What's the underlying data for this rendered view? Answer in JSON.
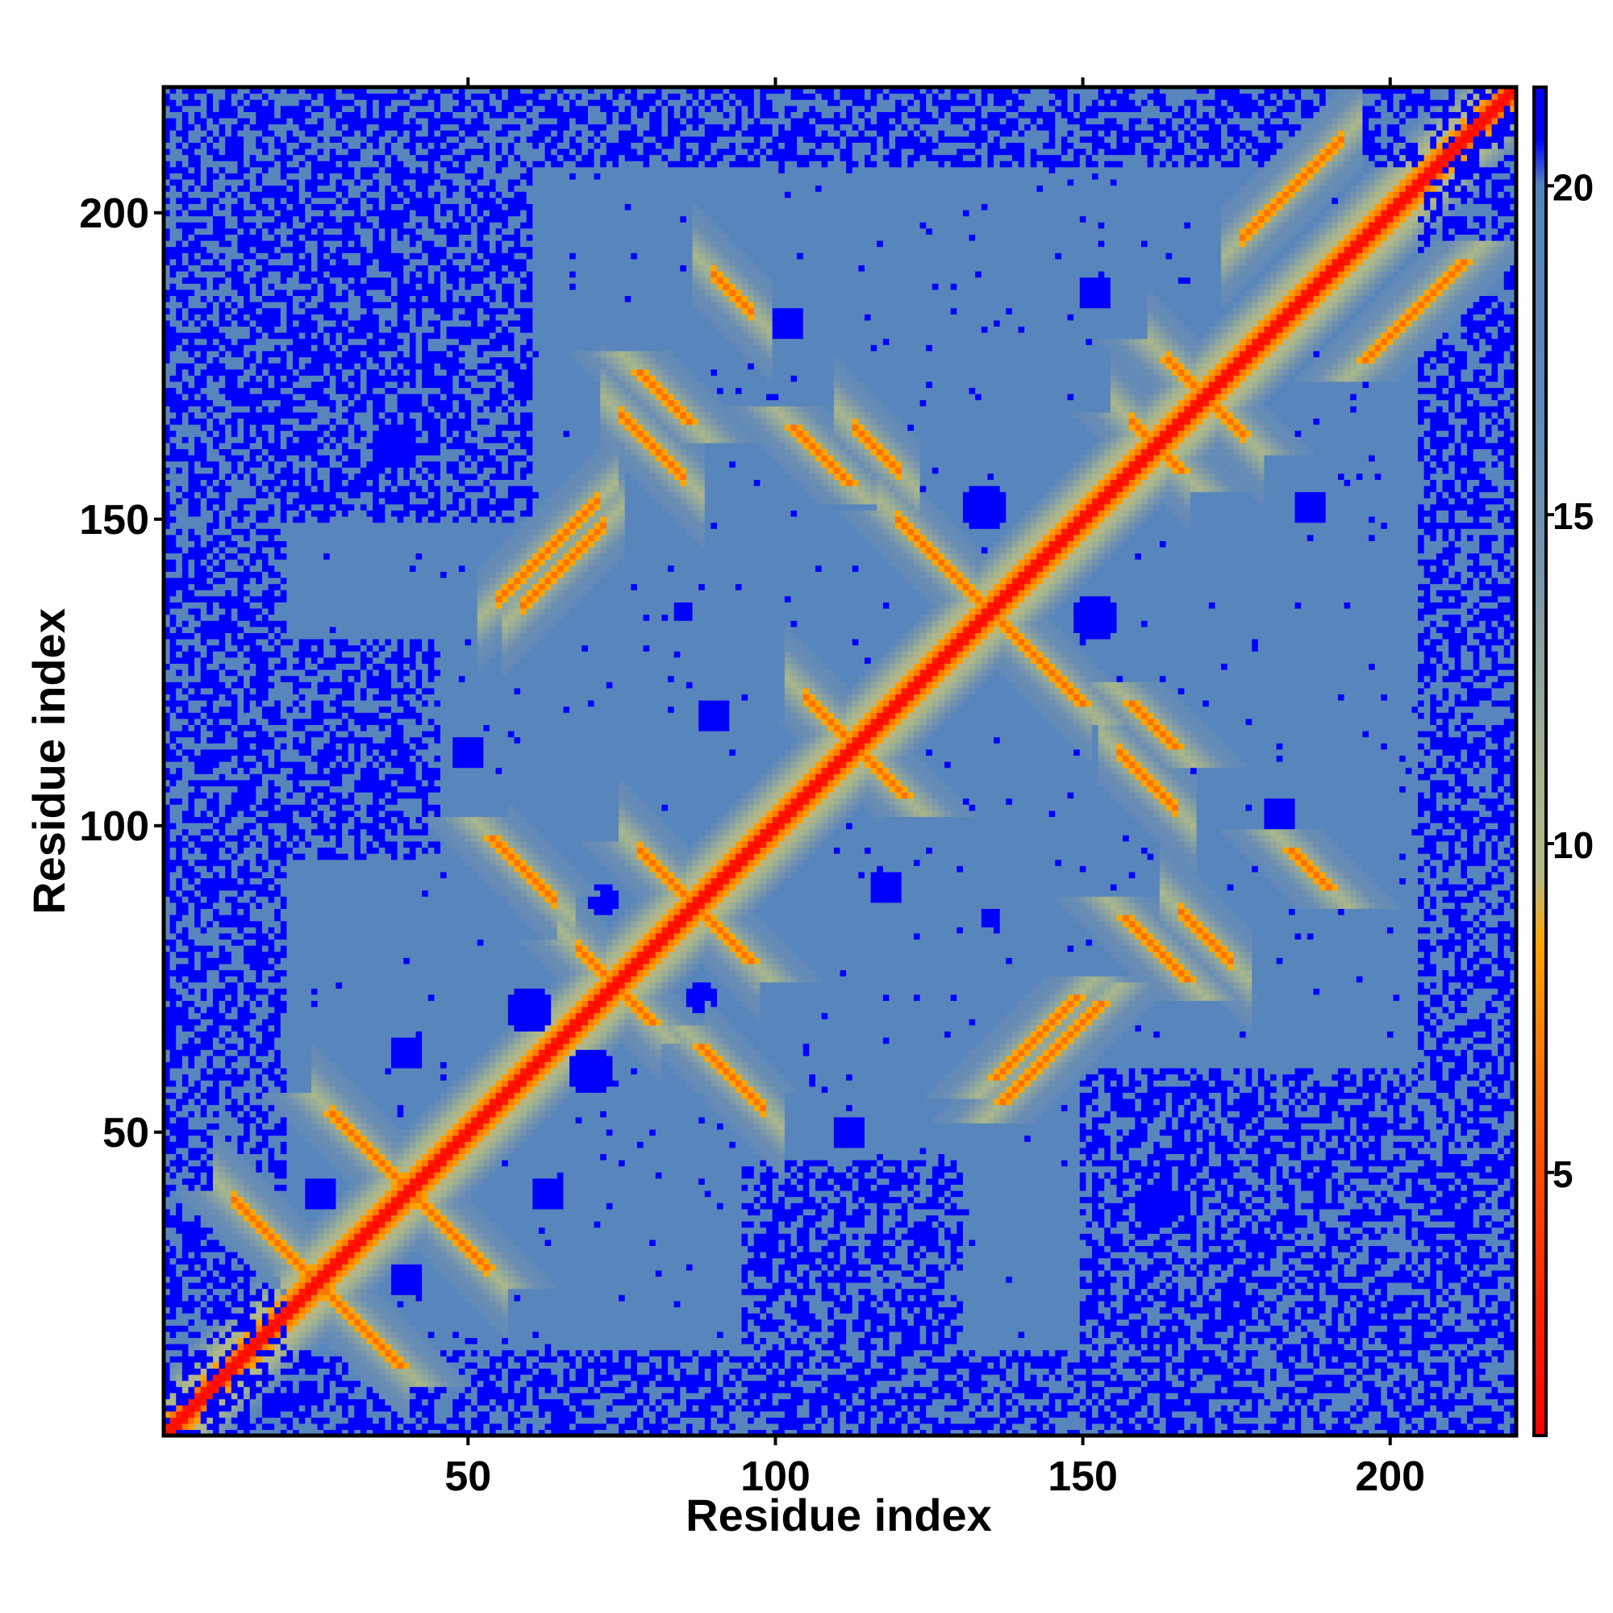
{
  "chart_data": {
    "type": "heatmap",
    "title": "",
    "xlabel": "Residue index",
    "ylabel": "Residue index",
    "xlim": [
      1,
      220
    ],
    "ylim": [
      1,
      220
    ],
    "x_ticks": [
      "50",
      "100",
      "150",
      "200"
    ],
    "y_ticks": [
      "50",
      "100",
      "150",
      "200"
    ],
    "colorbar": {
      "range": [
        1,
        21.5
      ],
      "ticks": [
        "5",
        "10",
        "15",
        "20"
      ],
      "stops": [
        {
          "value": 1,
          "color": "#ff0000"
        },
        {
          "value": 5,
          "color": "#ff4a00"
        },
        {
          "value": 8.5,
          "color": "#ffa500"
        },
        {
          "value": 9.5,
          "color": "#b5b887"
        },
        {
          "value": 11,
          "color": "#a3b48f"
        },
        {
          "value": 14,
          "color": "#7a97ab"
        },
        {
          "value": 17,
          "color": "#5b87bb"
        },
        {
          "value": 20,
          "color": "#5585bc"
        },
        {
          "value": 20.7,
          "color": "#0000ff"
        },
        {
          "value": 21.5,
          "color": "#0000ff"
        }
      ]
    },
    "diagonal": {
      "value": 1.5
    },
    "beta_contacts": [
      {
        "a_start": 12,
        "b_start": 39,
        "length": 25,
        "orientation": "antiparallel"
      },
      {
        "a_start": 28,
        "b_start": 53,
        "length": 25,
        "orientation": "antiparallel"
      },
      {
        "a_start": 59,
        "b_start": 136,
        "length": 13,
        "orientation": "parallel"
      },
      {
        "a_start": 78,
        "b_start": 96,
        "length": 16,
        "orientation": "antiparallel"
      },
      {
        "a_start": 68,
        "b_start": 80,
        "length": 10,
        "orientation": "antiparallel"
      },
      {
        "a_start": 120,
        "b_start": 150,
        "length": 28,
        "orientation": "antiparallel"
      },
      {
        "a_start": 55,
        "b_start": 137,
        "length": 16,
        "orientation": "parallel"
      },
      {
        "a_start": 164,
        "b_start": 176,
        "length": 12,
        "orientation": "antiparallel"
      },
      {
        "a_start": 75,
        "b_start": 167,
        "length": 10,
        "orientation": "antiparallel"
      },
      {
        "a_start": 158,
        "b_start": 166,
        "length": 6,
        "orientation": "antiparallel"
      },
      {
        "a_start": 176,
        "b_start": 196,
        "length": 16,
        "orientation": "parallel"
      },
      {
        "a_start": 60,
        "b_start": 92,
        "length": 4,
        "orientation": "antiparallel"
      },
      {
        "a_start": 166,
        "b_start": 86,
        "length": 8,
        "orientation": "antiparallel"
      },
      {
        "a_start": 90,
        "b_start": 190,
        "length": 6,
        "orientation": "antiparallel"
      },
      {
        "a_start": 156,
        "b_start": 112,
        "length": 9,
        "orientation": "antiparallel"
      },
      {
        "a_start": 92,
        "b_start": 60,
        "length": 6,
        "orientation": "antiparallel"
      },
      {
        "a_start": 113,
        "b_start": 165,
        "length": 7,
        "orientation": "antiparallel"
      },
      {
        "a_start": 105,
        "b_start": 121,
        "length": 9,
        "orientation": "antiparallel"
      }
    ],
    "far_regions": [
      {
        "x": [
          1,
          20
        ],
        "y": [
          1,
          220
        ]
      },
      {
        "x": [
          1,
          220
        ],
        "y": [
          1,
          14
        ]
      },
      {
        "x": [
          205,
          220
        ],
        "y": [
          1,
          220
        ]
      },
      {
        "x": [
          1,
          220
        ],
        "y": [
          208,
          220
        ]
      },
      {
        "x": [
          150,
          205
        ],
        "y": [
          1,
          60
        ]
      },
      {
        "x": [
          1,
          60
        ],
        "y": [
          150,
          208
        ]
      },
      {
        "x": [
          95,
          130
        ],
        "y": [
          10,
          45
        ]
      },
      {
        "x": [
          10,
          45
        ],
        "y": [
          95,
          130
        ]
      }
    ],
    "blobs": [
      {
        "cx": 26,
        "cy": 40,
        "r": 3
      },
      {
        "cx": 40,
        "cy": 26,
        "r": 3
      },
      {
        "cx": 60,
        "cy": 70,
        "r": 4
      },
      {
        "cx": 70,
        "cy": 60,
        "r": 4
      },
      {
        "cx": 72,
        "cy": 88,
        "r": 2.5
      },
      {
        "cx": 88,
        "cy": 72,
        "r": 2.5
      },
      {
        "cx": 134,
        "cy": 152,
        "r": 4
      },
      {
        "cx": 152,
        "cy": 134,
        "r": 4
      },
      {
        "cx": 135,
        "cy": 85,
        "r": 2
      },
      {
        "cx": 85,
        "cy": 135,
        "r": 2
      },
      {
        "cx": 187,
        "cy": 152,
        "r": 3
      },
      {
        "cx": 152,
        "cy": 187,
        "r": 3
      },
      {
        "cx": 38,
        "cy": 162,
        "r": 4
      },
      {
        "cx": 162,
        "cy": 38,
        "r": 4
      },
      {
        "cx": 40,
        "cy": 63,
        "r": 3
      },
      {
        "cx": 63,
        "cy": 40,
        "r": 3
      },
      {
        "cx": 90,
        "cy": 118,
        "r": 3
      },
      {
        "cx": 118,
        "cy": 90,
        "r": 3
      },
      {
        "cx": 112,
        "cy": 50,
        "r": 3
      },
      {
        "cx": 50,
        "cy": 112,
        "r": 3
      },
      {
        "cx": 102,
        "cy": 182,
        "r": 3
      },
      {
        "cx": 182,
        "cy": 102,
        "r": 3
      }
    ]
  }
}
